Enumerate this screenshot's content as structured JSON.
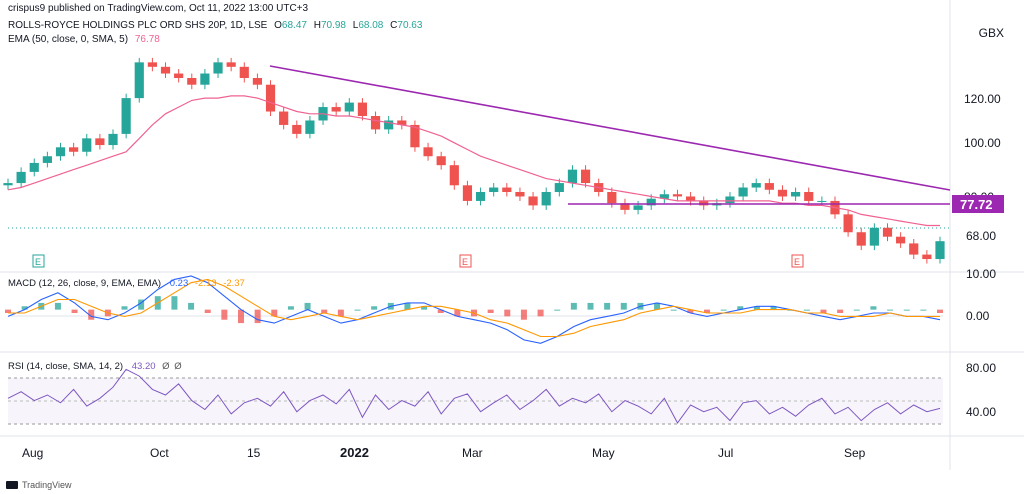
{
  "credit": "crispus9 published on TradingView.com, Oct 11, 2022 13:00 UTC+3",
  "symbol": {
    "title": "ROLLS-ROYCE HOLDINGS PLC ORD SHS 20P, 1D, LSE",
    "o_label": "O",
    "o": "68.47",
    "h_label": "H",
    "h": "70.98",
    "l_label": "L",
    "l": "68.08",
    "c_label": "C",
    "c": "70.63"
  },
  "ema_label": "EMA (50, close, 0, SMA, 5)",
  "ema_value": "76.78",
  "axis_unit": "GBX",
  "footer": "TradingView",
  "colors": {
    "up": "#26a69a",
    "down": "#ef5350",
    "ema": "#f06292",
    "trend": "#9c27b0",
    "macd": "#2962ff",
    "signal": "#ff9800",
    "rsi": "#7e57c2",
    "grid": "#e0e3eb"
  },
  "chart_data": [
    {
      "type": "candlestick",
      "title": "ROLLS-ROYCE HOLDINGS PLC ORD SHS 20P, 1D, LSE",
      "x_ticks": [
        "Aug",
        "Oct",
        "15",
        "2022",
        "Mar",
        "May",
        "Jul",
        "Sep"
      ],
      "y_ticks": [
        "120.00",
        "100.00",
        "80.00",
        "68.00"
      ],
      "price_label": "77.72",
      "ylim": [
        58,
        160
      ],
      "close_path": [
        96,
        101,
        105,
        108,
        112,
        110,
        116,
        113,
        118,
        134,
        150,
        148,
        145,
        143,
        140,
        145,
        150,
        148,
        143,
        140,
        128,
        122,
        118,
        124,
        130,
        128,
        132,
        126,
        120,
        124,
        122,
        112,
        108,
        104,
        95,
        88,
        92,
        94,
        92,
        90,
        86,
        92,
        96,
        102,
        96,
        92,
        87,
        84,
        86,
        89,
        91,
        90,
        88,
        86,
        87,
        90,
        94,
        96,
        93,
        90,
        92,
        88,
        88,
        82,
        74,
        68,
        76,
        72,
        69,
        64,
        62,
        70
      ],
      "ema_path": [
        93,
        94,
        96,
        98,
        100,
        102,
        104,
        106,
        108,
        110,
        116,
        122,
        127,
        130,
        133,
        134,
        134,
        135,
        135,
        134,
        132,
        130,
        128,
        127,
        127,
        126,
        126,
        125,
        124,
        123,
        122,
        121,
        119,
        117,
        114,
        111,
        108,
        106,
        104,
        102,
        100,
        98,
        97,
        96,
        95,
        94,
        93,
        92,
        91,
        90,
        89,
        88,
        88,
        88,
        88,
        88,
        88,
        88,
        88,
        87,
        87,
        86,
        86,
        85,
        84,
        82,
        81,
        80,
        79,
        78,
        77,
        77
      ],
      "series": [
        {
          "name": "EMA (50, close, 0, SMA, 5)",
          "last": 76.78
        }
      ]
    },
    {
      "type": "bar",
      "title": "MACD (12, 26, close, 9, EMA, EMA)",
      "values_label": [
        "0.23",
        "-2.13",
        "-2.37"
      ],
      "y_ticks": [
        "10.00",
        "0.00"
      ],
      "ylim": [
        -12,
        10
      ],
      "macd_path": [
        -2,
        0,
        3,
        5,
        2,
        -2,
        -3,
        -1,
        2,
        6,
        9,
        10,
        8,
        4,
        0,
        -3,
        -4,
        -2,
        0,
        -2,
        -4,
        -3,
        -1,
        1,
        2,
        2,
        0,
        -2,
        -3,
        -4,
        -6,
        -9,
        -10,
        -8,
        -5,
        -3,
        -2,
        -1,
        1,
        2,
        1,
        -1,
        -2,
        -1,
        0,
        1,
        1,
        0,
        -1,
        -2,
        -3,
        -2,
        -1,
        -1,
        -2,
        -2,
        -3
      ],
      "signal_path": [
        -1,
        -1,
        1,
        3,
        3,
        1,
        -1,
        -2,
        -1,
        2,
        5,
        8,
        9,
        7,
        4,
        1,
        -2,
        -3,
        -2,
        -1,
        -2,
        -3,
        -2,
        -1,
        0,
        1,
        1,
        0,
        -1,
        -3,
        -4,
        -6,
        -8,
        -8,
        -7,
        -5,
        -4,
        -3,
        -1,
        0,
        1,
        0,
        -1,
        -1,
        -1,
        0,
        0,
        0,
        -1,
        -1,
        -2,
        -2,
        -2,
        -1,
        -2,
        -2,
        -2
      ]
    },
    {
      "type": "line",
      "title": "RSI (14, close, SMA, 14, 2)",
      "values_label": [
        "43.20",
        "Ø",
        "Ø"
      ],
      "y_ticks": [
        "80.00",
        "40.00"
      ],
      "ylim": [
        20,
        90
      ],
      "rsi_path": [
        52,
        58,
        50,
        55,
        48,
        60,
        45,
        52,
        62,
        78,
        72,
        60,
        55,
        65,
        50,
        42,
        55,
        38,
        48,
        52,
        45,
        58,
        40,
        50,
        55,
        47,
        60,
        35,
        55,
        42,
        50,
        45,
        58,
        38,
        52,
        56,
        40,
        48,
        55,
        42,
        50,
        60,
        45,
        52,
        48,
        56,
        40,
        50,
        45,
        38,
        52,
        30,
        46,
        40,
        44,
        32,
        48,
        50,
        38,
        44,
        36,
        46,
        52,
        38,
        44,
        32,
        42,
        48,
        38,
        46,
        40,
        43
      ]
    }
  ]
}
